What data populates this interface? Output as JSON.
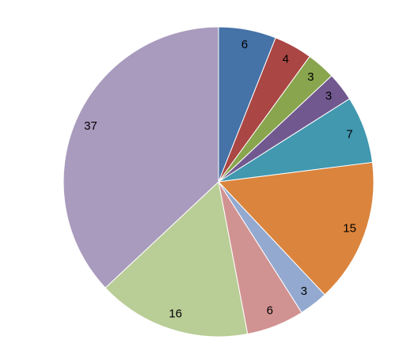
{
  "chart_data": {
    "type": "pie",
    "values": [
      6,
      4,
      3,
      3,
      7,
      15,
      3,
      6,
      16,
      37
    ],
    "colors": [
      "#4572a7",
      "#aa4643",
      "#89a54e",
      "#71588f",
      "#4198af",
      "#db843d",
      "#93a9cf",
      "#d19392",
      "#b9cd96",
      "#a99bbd"
    ]
  }
}
